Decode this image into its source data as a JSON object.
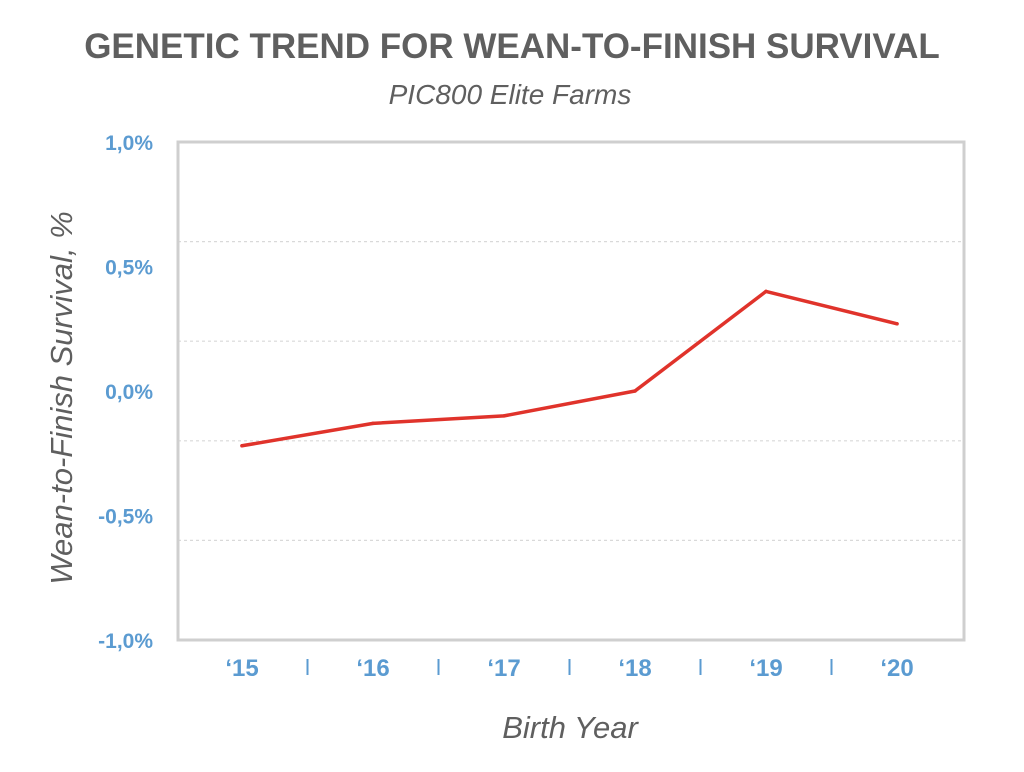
{
  "chart_data": {
    "type": "line",
    "title": "GENETIC TREND FOR WEAN-TO-FINISH SURVIVAL",
    "subtitle": "PIC800 Elite Farms",
    "xlabel": "Birth Year",
    "ylabel": "Wean-to-Finish Survival, %",
    "categories": [
      "‘15",
      "‘16",
      "‘17",
      "‘18",
      "‘19",
      "‘20"
    ],
    "values": [
      -0.22,
      -0.13,
      -0.1,
      0.0,
      0.4,
      0.27
    ],
    "ylim": [
      -1.0,
      1.0
    ],
    "yticks": [
      1.0,
      0.5,
      0.0,
      -0.5,
      -1.0
    ],
    "ytick_labels": [
      "1,0%",
      "0,5%",
      "0,0%",
      "-0,5%",
      "-1,0%"
    ],
    "gridlines": [
      0.6,
      0.2,
      -0.2,
      -0.6
    ],
    "grid": true,
    "legend": "none",
    "line_color": "#e0332b",
    "tick_color": "#5b9bd1"
  }
}
